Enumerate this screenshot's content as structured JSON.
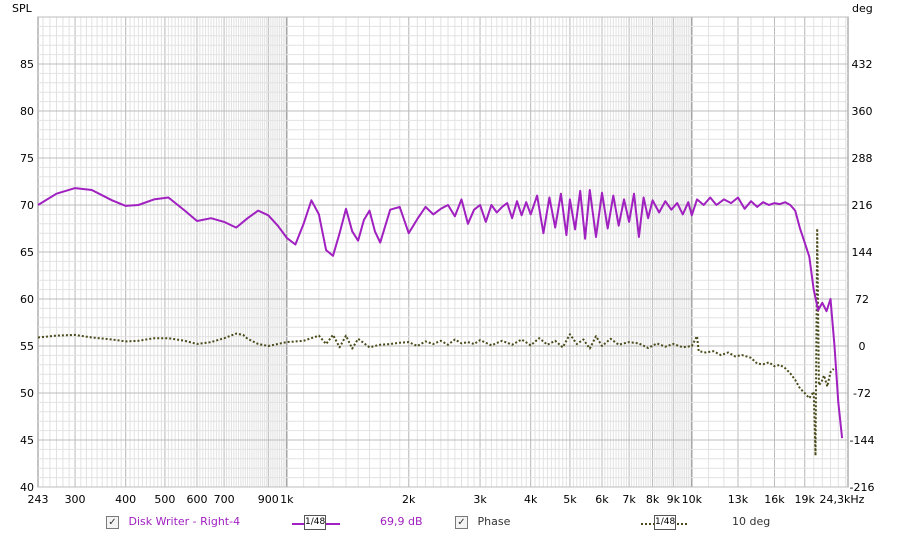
{
  "chart_data": {
    "type": "line",
    "ylabel_left": "SPL",
    "ylabel_right": "deg",
    "y_left_range": [
      40,
      90
    ],
    "y_left_ticks": [
      40,
      45,
      50,
      55,
      60,
      65,
      70,
      75,
      80,
      85
    ],
    "y_right_range": [
      -216,
      504
    ],
    "y_right_ticks": [
      -216,
      -144,
      -72,
      0,
      72,
      144,
      216,
      288,
      360,
      432
    ],
    "x_scale": "log",
    "x_range_hz": [
      243,
      24300
    ],
    "x_ticks": [
      {
        "hz": 243,
        "label": "243"
      },
      {
        "hz": 300,
        "label": "300"
      },
      {
        "hz": 400,
        "label": "400"
      },
      {
        "hz": 500,
        "label": "500"
      },
      {
        "hz": 600,
        "label": "600"
      },
      {
        "hz": 700,
        "label": "700"
      },
      {
        "hz": 900,
        "label": "900"
      },
      {
        "hz": 1000,
        "label": "1k"
      },
      {
        "hz": 2000,
        "label": "2k"
      },
      {
        "hz": 3000,
        "label": "3k"
      },
      {
        "hz": 4000,
        "label": "4k"
      },
      {
        "hz": 5000,
        "label": "5k"
      },
      {
        "hz": 6000,
        "label": "6k"
      },
      {
        "hz": 7000,
        "label": "7k"
      },
      {
        "hz": 8000,
        "label": "8k"
      },
      {
        "hz": 9000,
        "label": "9k"
      },
      {
        "hz": 10000,
        "label": "10k"
      },
      {
        "hz": 13000,
        "label": "13k"
      },
      {
        "hz": 16000,
        "label": "16k"
      },
      {
        "hz": 19000,
        "label": "19k"
      },
      {
        "hz": 24300,
        "label": "24,3kHz"
      }
    ],
    "grid": true,
    "series": [
      {
        "name": "Disk Writer - Right-4",
        "axis": "left",
        "color": "#a020c0",
        "points": [
          [
            243,
            70.0
          ],
          [
            270,
            71.2
          ],
          [
            300,
            71.8
          ],
          [
            330,
            71.6
          ],
          [
            370,
            70.5
          ],
          [
            400,
            69.9
          ],
          [
            430,
            70.0
          ],
          [
            470,
            70.6
          ],
          [
            510,
            70.8
          ],
          [
            560,
            69.4
          ],
          [
            600,
            68.3
          ],
          [
            650,
            68.6
          ],
          [
            700,
            68.2
          ],
          [
            750,
            67.6
          ],
          [
            800,
            68.6
          ],
          [
            850,
            69.4
          ],
          [
            900,
            68.9
          ],
          [
            950,
            67.8
          ],
          [
            1000,
            66.5
          ],
          [
            1050,
            65.8
          ],
          [
            1100,
            68.0
          ],
          [
            1150,
            70.5
          ],
          [
            1200,
            69.0
          ],
          [
            1250,
            65.2
          ],
          [
            1300,
            64.6
          ],
          [
            1350,
            67.0
          ],
          [
            1400,
            69.6
          ],
          [
            1450,
            67.2
          ],
          [
            1500,
            66.2
          ],
          [
            1550,
            68.4
          ],
          [
            1600,
            69.4
          ],
          [
            1650,
            67.2
          ],
          [
            1700,
            66.0
          ],
          [
            1800,
            69.5
          ],
          [
            1900,
            69.8
          ],
          [
            2000,
            67.0
          ],
          [
            2100,
            68.5
          ],
          [
            2200,
            69.8
          ],
          [
            2300,
            69.0
          ],
          [
            2400,
            69.6
          ],
          [
            2500,
            70.0
          ],
          [
            2600,
            68.8
          ],
          [
            2700,
            70.6
          ],
          [
            2800,
            68.0
          ],
          [
            2900,
            69.5
          ],
          [
            3000,
            70.0
          ],
          [
            3100,
            68.2
          ],
          [
            3200,
            70.0
          ],
          [
            3300,
            69.2
          ],
          [
            3400,
            69.8
          ],
          [
            3500,
            70.2
          ],
          [
            3600,
            68.6
          ],
          [
            3700,
            70.4
          ],
          [
            3800,
            68.9
          ],
          [
            3900,
            70.3
          ],
          [
            4000,
            69.0
          ],
          [
            4150,
            71.0
          ],
          [
            4300,
            67.0
          ],
          [
            4450,
            70.8
          ],
          [
            4600,
            67.6
          ],
          [
            4750,
            71.2
          ],
          [
            4900,
            66.8
          ],
          [
            5000,
            70.6
          ],
          [
            5150,
            67.4
          ],
          [
            5300,
            71.5
          ],
          [
            5450,
            66.4
          ],
          [
            5600,
            71.6
          ],
          [
            5800,
            66.6
          ],
          [
            6000,
            71.3
          ],
          [
            6200,
            67.5
          ],
          [
            6400,
            71.0
          ],
          [
            6600,
            67.8
          ],
          [
            6800,
            70.6
          ],
          [
            7000,
            68.2
          ],
          [
            7200,
            71.2
          ],
          [
            7400,
            66.6
          ],
          [
            7600,
            70.8
          ],
          [
            7800,
            68.6
          ],
          [
            8000,
            70.5
          ],
          [
            8300,
            69.2
          ],
          [
            8600,
            70.4
          ],
          [
            8900,
            69.5
          ],
          [
            9200,
            70.2
          ],
          [
            9500,
            69.0
          ],
          [
            9800,
            70.3
          ],
          [
            10000,
            68.9
          ],
          [
            10300,
            70.6
          ],
          [
            10700,
            70.0
          ],
          [
            11100,
            70.8
          ],
          [
            11500,
            70.0
          ],
          [
            12000,
            70.6
          ],
          [
            12500,
            70.2
          ],
          [
            13000,
            70.8
          ],
          [
            13500,
            69.6
          ],
          [
            14000,
            70.4
          ],
          [
            14500,
            69.8
          ],
          [
            15000,
            70.3
          ],
          [
            15500,
            70.0
          ],
          [
            16000,
            70.2
          ],
          [
            16500,
            70.1
          ],
          [
            17000,
            70.3
          ],
          [
            17500,
            70.0
          ],
          [
            18000,
            69.4
          ],
          [
            18500,
            67.5
          ],
          [
            19000,
            66.0
          ],
          [
            19500,
            64.5
          ],
          [
            20000,
            61.0
          ],
          [
            20500,
            58.8
          ],
          [
            21000,
            59.6
          ],
          [
            21500,
            58.7
          ],
          [
            22000,
            60.0
          ],
          [
            22500,
            55.0
          ],
          [
            23000,
            49.0
          ],
          [
            23500,
            45.2
          ]
        ]
      },
      {
        "name": "Phase",
        "axis": "right",
        "color": "#4a4a1a",
        "points": [
          [
            243,
            13
          ],
          [
            270,
            16
          ],
          [
            300,
            17
          ],
          [
            330,
            13
          ],
          [
            370,
            10
          ],
          [
            400,
            7
          ],
          [
            430,
            8
          ],
          [
            470,
            12
          ],
          [
            510,
            12
          ],
          [
            560,
            8
          ],
          [
            600,
            3
          ],
          [
            650,
            6
          ],
          [
            700,
            12
          ],
          [
            750,
            19
          ],
          [
            780,
            17
          ],
          [
            800,
            11
          ],
          [
            850,
            3
          ],
          [
            900,
            0
          ],
          [
            950,
            3
          ],
          [
            1000,
            6
          ],
          [
            1100,
            8
          ],
          [
            1200,
            16
          ],
          [
            1250,
            3
          ],
          [
            1300,
            17
          ],
          [
            1350,
            -2
          ],
          [
            1400,
            16
          ],
          [
            1450,
            -4
          ],
          [
            1500,
            11
          ],
          [
            1600,
            -2
          ],
          [
            1700,
            2
          ],
          [
            1800,
            3
          ],
          [
            1900,
            5
          ],
          [
            2000,
            6
          ],
          [
            2100,
            0
          ],
          [
            2200,
            7
          ],
          [
            2300,
            3
          ],
          [
            2400,
            8
          ],
          [
            2500,
            2
          ],
          [
            2600,
            10
          ],
          [
            2700,
            4
          ],
          [
            2800,
            6
          ],
          [
            2900,
            3
          ],
          [
            3000,
            9
          ],
          [
            3200,
            1
          ],
          [
            3400,
            8
          ],
          [
            3600,
            2
          ],
          [
            3800,
            10
          ],
          [
            4000,
            1
          ],
          [
            4200,
            12
          ],
          [
            4400,
            2
          ],
          [
            4600,
            8
          ],
          [
            4800,
            -2
          ],
          [
            5000,
            18
          ],
          [
            5200,
            3
          ],
          [
            5400,
            10
          ],
          [
            5600,
            -4
          ],
          [
            5800,
            15
          ],
          [
            6000,
            0
          ],
          [
            6300,
            11
          ],
          [
            6600,
            2
          ],
          [
            7000,
            6
          ],
          [
            7400,
            4
          ],
          [
            7800,
            -3
          ],
          [
            8200,
            4
          ],
          [
            8600,
            -1
          ],
          [
            9000,
            3
          ],
          [
            9500,
            -2
          ],
          [
            10000,
            0
          ],
          [
            10300,
            15
          ],
          [
            10400,
            -8
          ],
          [
            10800,
            -10
          ],
          [
            11300,
            -8
          ],
          [
            11800,
            -14
          ],
          [
            12300,
            -10
          ],
          [
            12800,
            -16
          ],
          [
            13300,
            -14
          ],
          [
            14000,
            -18
          ],
          [
            14500,
            -27
          ],
          [
            15000,
            -28
          ],
          [
            15500,
            -25
          ],
          [
            16000,
            -31
          ],
          [
            16500,
            -29
          ],
          [
            17000,
            -34
          ],
          [
            17500,
            -42
          ],
          [
            18000,
            -52
          ],
          [
            18500,
            -65
          ],
          [
            19000,
            -72
          ],
          [
            19500,
            -80
          ],
          [
            20000,
            -70
          ],
          [
            20200,
            -168
          ],
          [
            20400,
            180
          ],
          [
            20600,
            -60
          ],
          [
            20900,
            -55
          ],
          [
            21200,
            -45
          ],
          [
            21600,
            -62
          ],
          [
            22000,
            -40
          ],
          [
            22400,
            -35
          ]
        ]
      }
    ]
  },
  "legend": {
    "series1_label": "Disk Writer - Right-4",
    "series1_smoothing": "1/48",
    "series1_value": "69,9 dB",
    "series2_label": "Phase",
    "series2_smoothing": "1/48",
    "series2_value": "10 deg"
  },
  "colors": {
    "spl": "#a020c0",
    "phase": "#4a4a1a",
    "grid_minor": "#e2e2e2",
    "grid_major": "#bcbcbc",
    "decade_line": "#7f7f7f"
  }
}
